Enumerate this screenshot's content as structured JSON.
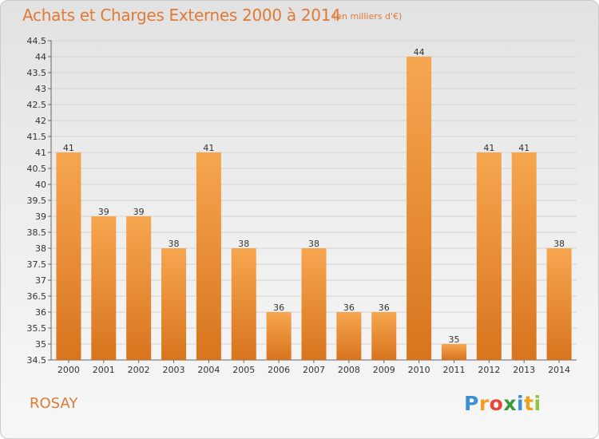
{
  "header": {
    "title": "Achats et Charges Externes 2000 à 2014",
    "subtitle": "(en milliers d'€)"
  },
  "footer": {
    "commune": "ROSAY",
    "brand_letters": [
      "P",
      "r",
      "o",
      "x",
      "i",
      "t",
      "i"
    ],
    "brand_colors": [
      "#3d8fd6",
      "#f0a020",
      "#e8463a",
      "#3a9b3a",
      "#3d8fd6",
      "#f0a020",
      "#8cc63f"
    ]
  },
  "colors": {
    "bar_light": "#f7a650",
    "bar_dark": "#d8741e",
    "accent": "#e07a35"
  },
  "chart_data": {
    "type": "bar",
    "categories": [
      "2000",
      "2001",
      "2002",
      "2003",
      "2004",
      "2005",
      "2006",
      "2007",
      "2008",
      "2009",
      "2010",
      "2011",
      "2012",
      "2013",
      "2014"
    ],
    "values": [
      41,
      39,
      39,
      38,
      41,
      38,
      36,
      38,
      36,
      36,
      44,
      35,
      41,
      41,
      38
    ],
    "data_labels": [
      "41",
      "39",
      "39",
      "38",
      "41",
      "38",
      "36",
      "38",
      "36",
      "36",
      "44",
      "35",
      "41",
      "41",
      "38"
    ],
    "y_ticks": [
      "34.5",
      "35",
      "35.5",
      "36",
      "36.5",
      "37",
      "37.5",
      "38",
      "38.5",
      "39",
      "39.5",
      "40",
      "40.5",
      "41",
      "41.5",
      "42",
      "42.5",
      "43",
      "43.5",
      "44",
      "44.5"
    ],
    "ylim": [
      34.5,
      44.5
    ],
    "grid": true
  }
}
